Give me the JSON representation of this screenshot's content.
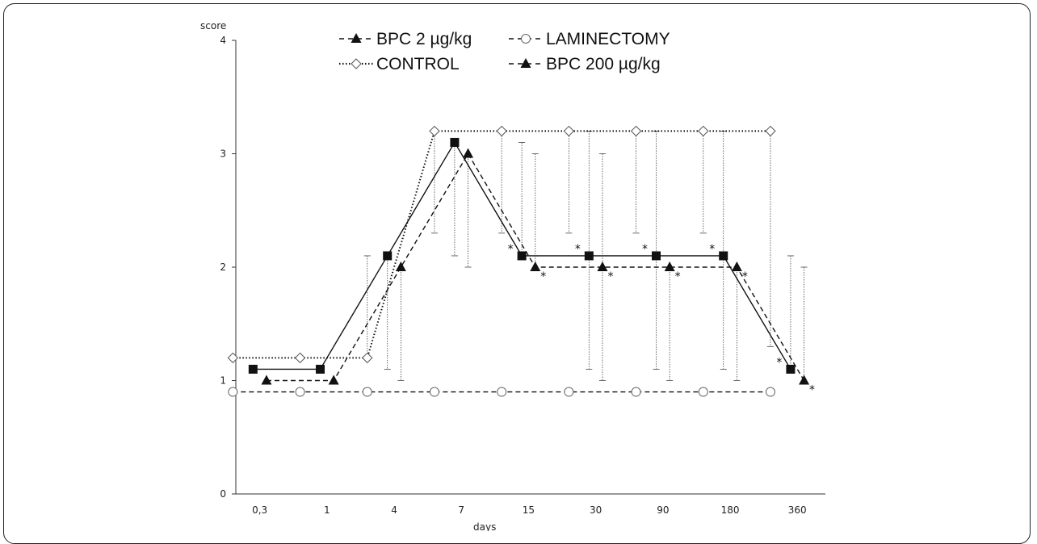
{
  "chart_data": {
    "type": "line",
    "ylabel": "score",
    "xlabel": "days",
    "ylim": [
      0,
      4
    ],
    "yticks": [
      "0",
      "1",
      "2",
      "3",
      "4"
    ],
    "categories": [
      "0,3",
      "1",
      "4",
      "7",
      "15",
      "30",
      "90",
      "180",
      "360"
    ],
    "legend_placement": "top-center",
    "series": [
      {
        "name": "BPC 2 µg/kg",
        "legend_marker": "-▲-",
        "marker": "square",
        "line": "solid",
        "offset": 0.1,
        "values": [
          1.1,
          1.1,
          2.1,
          3.1,
          2.1,
          2.1,
          2.1,
          2.1,
          1.1
        ],
        "error_upper": [
          null,
          null,
          null,
          3.1,
          3.1,
          3.2,
          3.2,
          3.2,
          2.1
        ],
        "error_lower": [
          null,
          null,
          1.1,
          2.1,
          null,
          1.1,
          1.1,
          1.1,
          null
        ],
        "significance": [
          false,
          false,
          false,
          false,
          true,
          true,
          true,
          true,
          true
        ]
      },
      {
        "name": "BPC 200 µg/kg",
        "legend_marker": "-▲-",
        "marker": "triangle",
        "line": "dashed",
        "offset": 0.3,
        "values": [
          1.0,
          1.0,
          2.0,
          3.0,
          2.0,
          2.0,
          2.0,
          2.0,
          1.0
        ],
        "error_upper": [
          null,
          null,
          null,
          null,
          3.0,
          3.0,
          null,
          null,
          2.0
        ],
        "error_lower": [
          null,
          null,
          1.0,
          2.0,
          null,
          1.0,
          1.0,
          1.0,
          null
        ],
        "significance": [
          false,
          false,
          false,
          false,
          true,
          true,
          true,
          true,
          true
        ]
      },
      {
        "name": "CONTROL",
        "legend_marker": "·◇·",
        "marker": "diamond",
        "line": "dotted",
        "offset": -0.2,
        "values": [
          1.2,
          1.2,
          1.2,
          3.2,
          3.2,
          3.2,
          3.2,
          3.2,
          3.2
        ],
        "error_upper": [
          null,
          null,
          2.1,
          null,
          null,
          null,
          null,
          null,
          null
        ],
        "error_lower": [
          null,
          null,
          null,
          2.3,
          2.3,
          2.3,
          2.3,
          2.3,
          1.3
        ],
        "significance": [
          false,
          false,
          false,
          false,
          false,
          false,
          false,
          false,
          false
        ]
      },
      {
        "name": "LAMINECTOMY",
        "legend_marker": "-⊖-",
        "marker": "circle",
        "line": "dashed",
        "offset": -0.2,
        "values": [
          0.9,
          0.9,
          0.9,
          0.9,
          0.9,
          0.9,
          0.9,
          0.9,
          0.9
        ],
        "error_upper": [
          null,
          null,
          null,
          null,
          null,
          null,
          null,
          null,
          null
        ],
        "error_lower": [
          null,
          null,
          null,
          null,
          null,
          null,
          null,
          null,
          null
        ],
        "significance": [
          false,
          false,
          false,
          false,
          false,
          false,
          false,
          false,
          false
        ]
      }
    ]
  }
}
